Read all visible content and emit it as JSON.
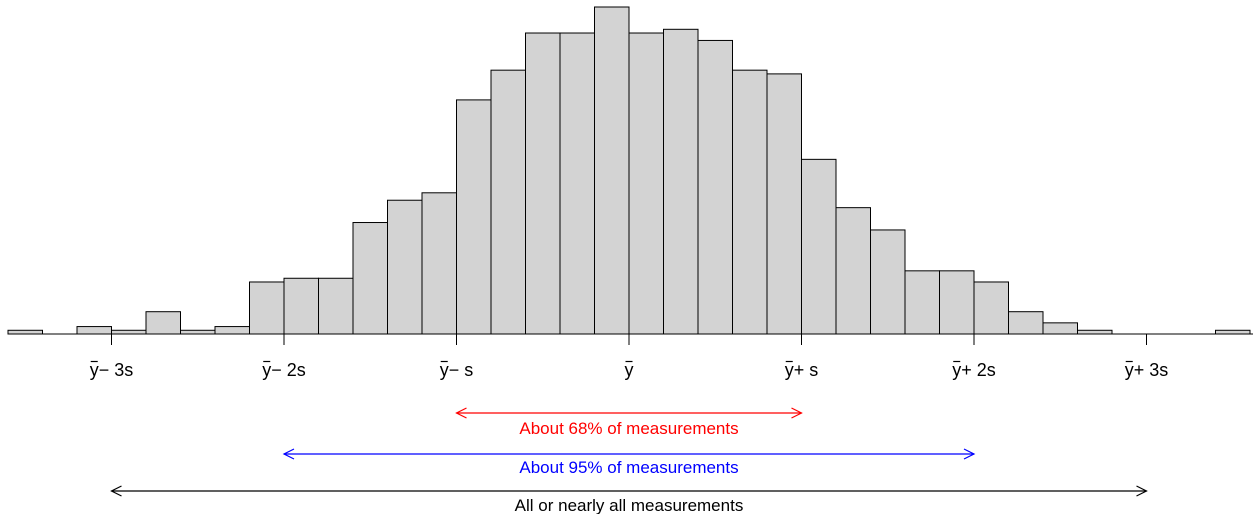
{
  "chart_data": {
    "type": "bar",
    "bin_width": 0.2,
    "bins": [
      {
        "x0": -3.6,
        "x1": -3.4,
        "count": 1
      },
      {
        "x0": -3.4,
        "x1": -3.2,
        "count": 0
      },
      {
        "x0": -3.2,
        "x1": -3.0,
        "count": 2
      },
      {
        "x0": -3.0,
        "x1": -2.8,
        "count": 1
      },
      {
        "x0": -2.8,
        "x1": -2.6,
        "count": 6
      },
      {
        "x0": -2.6,
        "x1": -2.4,
        "count": 1
      },
      {
        "x0": -2.4,
        "x1": -2.2,
        "count": 2
      },
      {
        "x0": -2.2,
        "x1": -2.0,
        "count": 14
      },
      {
        "x0": -2.0,
        "x1": -1.8,
        "count": 15
      },
      {
        "x0": -1.8,
        "x1": -1.6,
        "count": 15
      },
      {
        "x0": -1.6,
        "x1": -1.4,
        "count": 30
      },
      {
        "x0": -1.4,
        "x1": -1.2,
        "count": 36
      },
      {
        "x0": -1.2,
        "x1": -1.0,
        "count": 38
      },
      {
        "x0": -1.0,
        "x1": -0.8,
        "count": 63
      },
      {
        "x0": -0.8,
        "x1": -0.6,
        "count": 71
      },
      {
        "x0": -0.6,
        "x1": -0.4,
        "count": 81
      },
      {
        "x0": -0.4,
        "x1": -0.2,
        "count": 81
      },
      {
        "x0": -0.2,
        "x1": 0.0,
        "count": 88
      },
      {
        "x0": 0.0,
        "x1": 0.2,
        "count": 81
      },
      {
        "x0": 0.2,
        "x1": 0.4,
        "count": 82
      },
      {
        "x0": 0.4,
        "x1": 0.6,
        "count": 79
      },
      {
        "x0": 0.6,
        "x1": 0.8,
        "count": 71
      },
      {
        "x0": 0.8,
        "x1": 1.0,
        "count": 70
      },
      {
        "x0": 1.0,
        "x1": 1.2,
        "count": 47
      },
      {
        "x0": 1.2,
        "x1": 1.4,
        "count": 34
      },
      {
        "x0": 1.4,
        "x1": 1.6,
        "count": 28
      },
      {
        "x0": 1.6,
        "x1": 1.8,
        "count": 17
      },
      {
        "x0": 1.8,
        "x1": 2.0,
        "count": 17
      },
      {
        "x0": 2.0,
        "x1": 2.2,
        "count": 14
      },
      {
        "x0": 2.2,
        "x1": 2.4,
        "count": 6
      },
      {
        "x0": 2.4,
        "x1": 2.6,
        "count": 3
      },
      {
        "x0": 2.6,
        "x1": 2.8,
        "count": 1
      },
      {
        "x0": 2.8,
        "x1": 3.0,
        "count": 0
      },
      {
        "x0": 3.0,
        "x1": 3.2,
        "count": 0
      },
      {
        "x0": 3.2,
        "x1": 3.4,
        "count": 0
      },
      {
        "x0": 3.4,
        "x1": 3.6,
        "count": 1
      }
    ],
    "xlim": [
      -3.6,
      3.6
    ],
    "ylim": [
      0,
      88
    ],
    "bar_fill": "#d3d3d3",
    "bar_stroke": "#000000",
    "grid": false,
    "ticks": [
      {
        "value": -3,
        "bar": "y",
        "label": "− 3s"
      },
      {
        "value": -2,
        "bar": "y",
        "label": "− 2s"
      },
      {
        "value": -1,
        "bar": "y",
        "label": "− s"
      },
      {
        "value": 0,
        "bar": "y",
        "label": ""
      },
      {
        "value": 1,
        "bar": "y",
        "label": "+ s"
      },
      {
        "value": 2,
        "bar": "y",
        "label": "+ 2s"
      },
      {
        "value": 3,
        "bar": "y",
        "label": "+ 3s"
      }
    ],
    "ranges": [
      {
        "from": -1,
        "to": 1,
        "label": "About 68% of measurements",
        "color": "#ff0000"
      },
      {
        "from": -2,
        "to": 2,
        "label": "About 95% of measurements",
        "color": "#0000ff"
      },
      {
        "from": -3,
        "to": 3,
        "label": "All or nearly all measurements",
        "color": "#000000"
      }
    ]
  }
}
